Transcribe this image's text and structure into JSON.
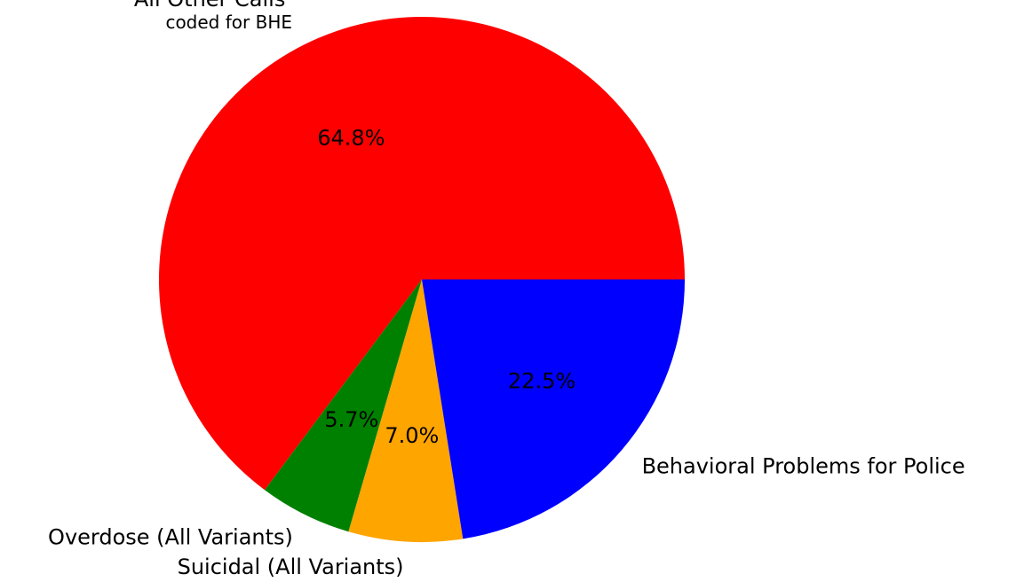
{
  "chart_data": {
    "type": "pie",
    "categories": [
      "All Other Calls\ncoded for BHE",
      "Overdose (All Variants)",
      "Suicidal (All Variants)",
      "Behavioral Problems for Police"
    ],
    "values": [
      64.8,
      5.7,
      7.0,
      22.5
    ],
    "value_labels": [
      "64.8%",
      "5.7%",
      "7.0%",
      "22.5%"
    ],
    "colors": [
      "#ff0000",
      "#008000",
      "#ffa500",
      "#0000ff"
    ]
  }
}
